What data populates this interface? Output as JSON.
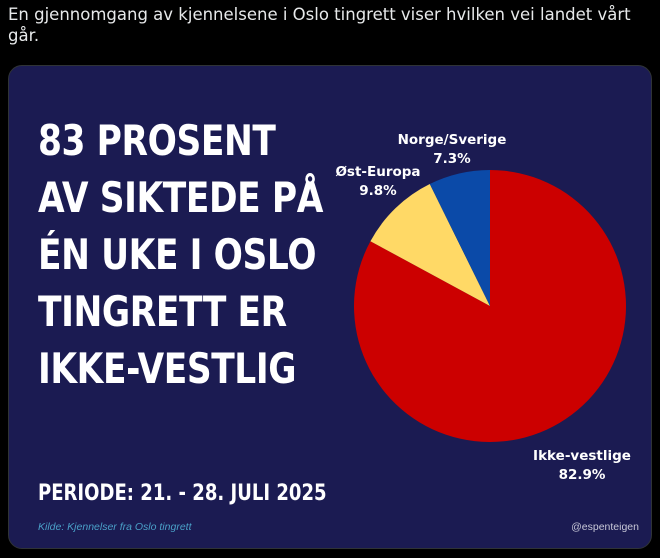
{
  "tweet": {
    "text": "En gjennomgang av kjennelsene i Oslo tingrett viser hvilken vei landet vårt går."
  },
  "infographic": {
    "headline_lines": [
      "83 PROSENT",
      "AV SIKTEDE PÅ",
      "ÉN UKE I OSLO",
      "TINGRETT ER",
      "IKKE-VESTLIG"
    ],
    "period": "PERIODE: 21. - 28. JULI 2025",
    "source": "Kilde: Kjennelser fra Oslo tingrett",
    "handle": "@espenteigen",
    "background_color": "#1b1b52"
  },
  "chart_data": {
    "type": "pie",
    "title": "",
    "slices": [
      {
        "label": "Ikke-vestlige",
        "value": 82.9,
        "display": "82.9%",
        "color": "#cc0000"
      },
      {
        "label": "Øst-Europa",
        "value": 9.8,
        "display": "9.8%",
        "color": "#ffd966"
      },
      {
        "label": "Norge/Sverige",
        "value": 7.3,
        "display": "7.3%",
        "color": "#0b4aa8"
      }
    ]
  }
}
